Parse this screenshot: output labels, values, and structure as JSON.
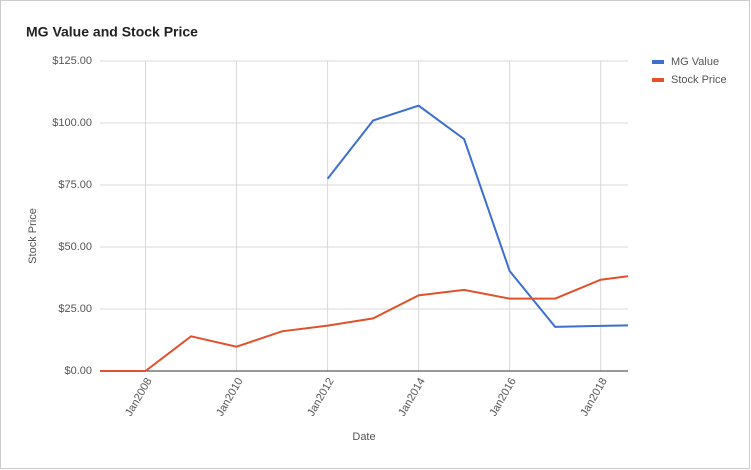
{
  "chart_data": {
    "type": "line",
    "title": "MG Value and Stock Price",
    "x_label": "Date",
    "y_label": "Stock Price",
    "x": [
      2007,
      2008,
      2009,
      2010,
      2011,
      2012,
      2013,
      2014,
      2015,
      2016,
      2017,
      2018,
      2018.6
    ],
    "series": [
      {
        "name": "MG Value",
        "color": "#3c6fce",
        "values": [
          null,
          null,
          null,
          null,
          null,
          77.5,
          101,
          107,
          93.5,
          40.3,
          17.8,
          18.2,
          18.4
        ]
      },
      {
        "name": "Stock Price",
        "color": "#e0512c",
        "values": [
          0,
          0,
          14,
          9.8,
          16,
          18.3,
          21.2,
          30.5,
          32.7,
          29.2,
          29.2,
          36.8,
          38.2
        ]
      }
    ],
    "xlim": [
      2007,
      2018.6
    ],
    "xticks": [
      {
        "value": 2008,
        "label": "Jan2008"
      },
      {
        "value": 2010,
        "label": "Jan2010"
      },
      {
        "value": 2012,
        "label": "Jan2012"
      },
      {
        "value": 2014,
        "label": "Jan2014"
      },
      {
        "value": 2016,
        "label": "Jan2016"
      },
      {
        "value": 2018,
        "label": "Jan2018"
      }
    ],
    "ylim": [
      0,
      125
    ],
    "yticks": [
      {
        "value": 0,
        "label": "$0.00"
      },
      {
        "value": 25,
        "label": "$25.00"
      },
      {
        "value": 50,
        "label": "$50.00"
      },
      {
        "value": 75,
        "label": "$75.00"
      },
      {
        "value": 100,
        "label": "$100.00"
      },
      {
        "value": 125,
        "label": "$125.00"
      }
    ],
    "grid": true,
    "legend": "right"
  }
}
